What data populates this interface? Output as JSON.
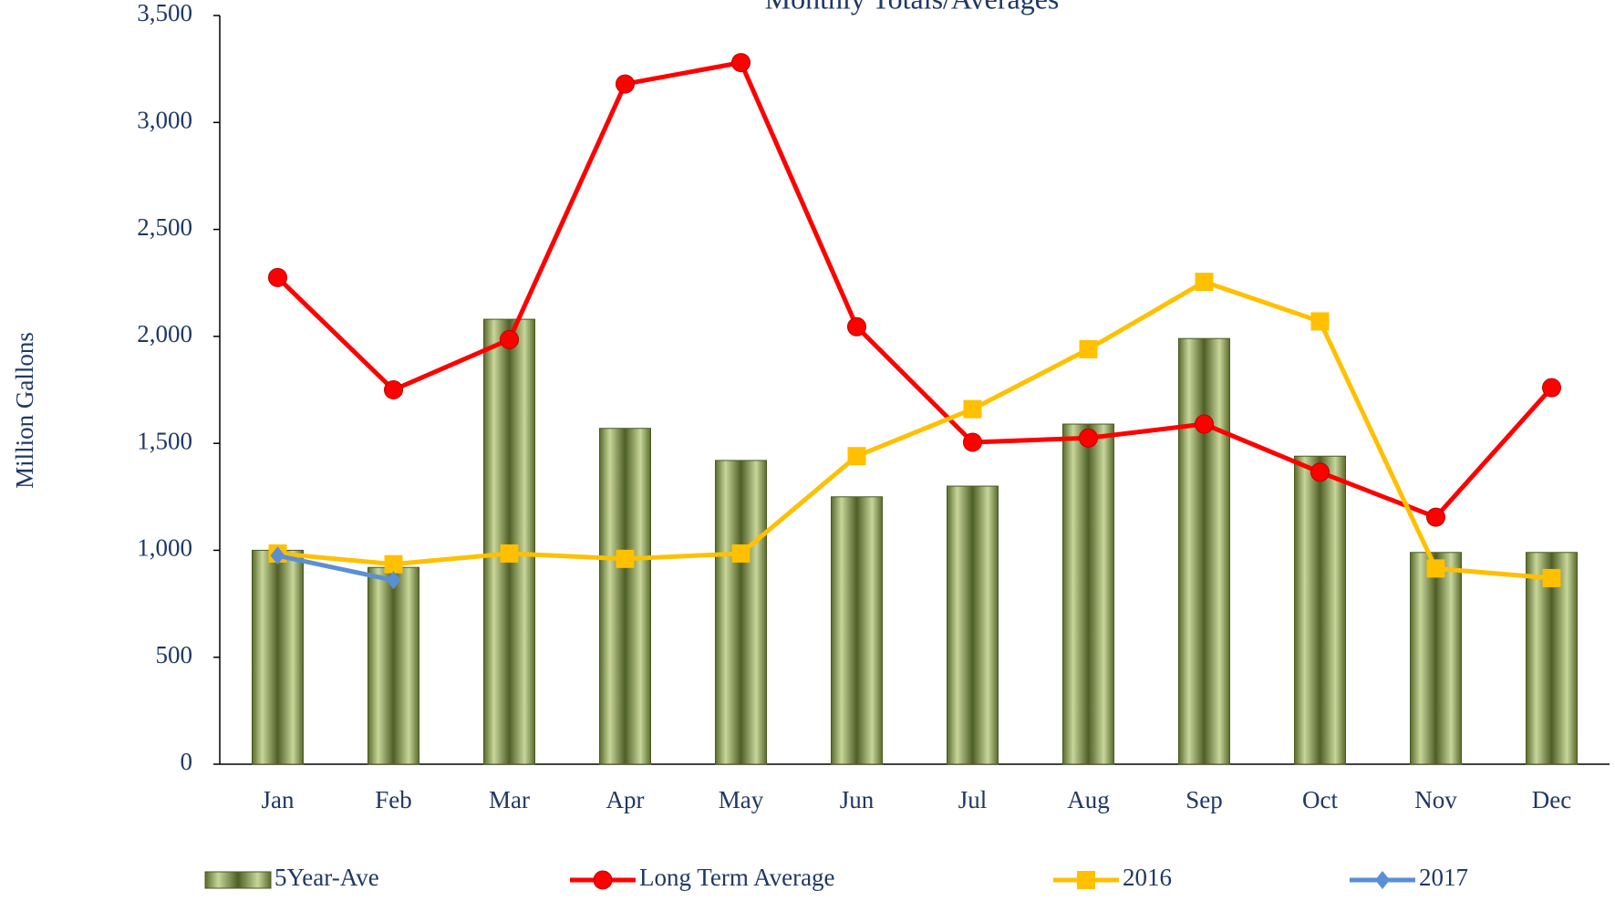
{
  "chart_data": {
    "type": "bar-line",
    "title": "Monthly Totals/Averages",
    "ylabel": "Million Gallons",
    "categories": [
      "Jan",
      "Feb",
      "Mar",
      "Apr",
      "May",
      "Jun",
      "Jul",
      "Aug",
      "Sep",
      "Oct",
      "Nov",
      "Dec"
    ],
    "series": [
      {
        "name": "5Year-Ave",
        "type": "bar",
        "color": "#8a9a5b",
        "values": [
          1000,
          920,
          2080,
          1570,
          1420,
          1250,
          1300,
          1590,
          1990,
          1440,
          990,
          990
        ]
      },
      {
        "name": "Long Term Average",
        "type": "line",
        "color": "#ff0000",
        "values": [
          2275,
          1750,
          1985,
          3180,
          3280,
          2045,
          1505,
          1525,
          1590,
          1365,
          1155,
          1760
        ]
      },
      {
        "name": "2016",
        "type": "line",
        "color": "#ffc000",
        "values": [
          985,
          935,
          985,
          960,
          985,
          1440,
          1660,
          1940,
          2255,
          2070,
          915,
          870
        ]
      },
      {
        "name": "2017",
        "type": "line",
        "color": "#5b8fd4",
        "values": [
          975,
          860,
          null,
          null,
          null,
          null,
          null,
          null,
          null,
          null,
          null,
          null
        ]
      }
    ],
    "ylim": [
      0,
      3500
    ],
    "yticks": [
      0,
      500,
      {
        "value": 1000,
        "label": "1,000"
      },
      {
        "value": 1500,
        "label": "1,500"
      },
      {
        "value": 2000,
        "label": "2,000"
      },
      {
        "value": 2500,
        "label": "2,500"
      },
      {
        "value": 3000,
        "label": "3,000"
      },
      {
        "value": 3500,
        "label": "3,500"
      }
    ],
    "legend": "bottom"
  }
}
